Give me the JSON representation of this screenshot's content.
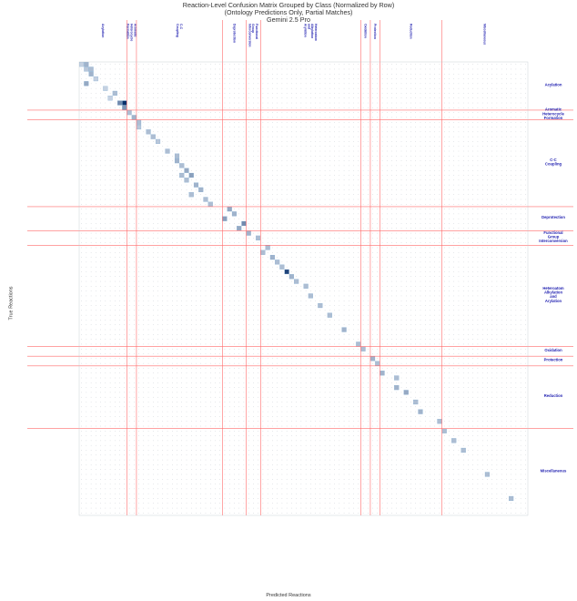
{
  "title_lines": [
    "Reaction-Level Confusion Matrix Grouped by Class (Normalized by Row)",
    "(Ontology Predictions Only, Partial Matches)",
    "Gemini 2.5 Pro"
  ],
  "chart_data": {
    "type": "heatmap",
    "title": "Reaction-Level Confusion Matrix Grouped by Class (Normalized by Row)",
    "subtitle": "(Ontology Predictions Only, Partial Matches)",
    "model": "Gemini 2.5 Pro",
    "xlabel": "Predicted Reactions",
    "ylabel": "True Reactions",
    "normalization": "row",
    "color_scale": [
      "#f4f9fe",
      "#08306b"
    ],
    "grid": true,
    "separator_color": "#ff6b6b",
    "classes": [
      {
        "name": "Acylation",
        "top_lines": [
          "Acylation"
        ],
        "right_lines": [
          "Acylation"
        ],
        "size": 10
      },
      {
        "name": "Aromatic Heterocycle Formation",
        "top_lines": [
          "Aromatic",
          "Heterocycle",
          "Formation"
        ],
        "right_lines": [
          "Aromatic",
          "Heterocycle",
          "Formation"
        ],
        "size": 2
      },
      {
        "name": "C-C Coupling",
        "top_lines": [
          "C-C",
          "Coupling"
        ],
        "right_lines": [
          "C-C",
          "Coupling"
        ],
        "size": 18
      },
      {
        "name": "Deprotection",
        "top_lines": [
          "Deprotection"
        ],
        "right_lines": [
          "Deprotection"
        ],
        "size": 5
      },
      {
        "name": "Functional Group Interconversion",
        "top_lines": [
          "Functional",
          "Group",
          "Interconversion"
        ],
        "right_lines": [
          "Functional",
          "Group",
          "Interconversion"
        ],
        "size": 3
      },
      {
        "name": "Heteroatom Alkylation and Arylation",
        "top_lines": [
          "Heteroatom",
          "Alkylation",
          "and",
          "Arylation"
        ],
        "right_lines": [
          "Heteroatom",
          "Alkylation",
          "and",
          "Arylation"
        ],
        "size": 21
      },
      {
        "name": "Oxidation",
        "top_lines": [
          "Oxidation"
        ],
        "right_lines": [
          "Oxidation"
        ],
        "size": 2
      },
      {
        "name": "Protection",
        "top_lines": [
          "Protection"
        ],
        "right_lines": [
          "Protection"
        ],
        "size": 2
      },
      {
        "name": "Reduction",
        "top_lines": [
          "Reduction"
        ],
        "right_lines": [
          "Reduction"
        ],
        "size": 13
      },
      {
        "name": "Miscellaneous",
        "top_lines": [
          "Miscellaneous"
        ],
        "right_lines": [
          "Miscellaneous"
        ],
        "size": 18
      }
    ],
    "cells": [
      {
        "row": 0,
        "col": 1,
        "value": 0.35
      },
      {
        "row": 0,
        "col": 0,
        "value": 0.2
      },
      {
        "row": 1,
        "col": 2,
        "value": 0.3
      },
      {
        "row": 1,
        "col": 1,
        "value": 0.25
      },
      {
        "row": 2,
        "col": 2,
        "value": 0.35
      },
      {
        "row": 3,
        "col": 3,
        "value": 0.2
      },
      {
        "row": 4,
        "col": 1,
        "value": 0.4
      },
      {
        "row": 5,
        "col": 5,
        "value": 0.2
      },
      {
        "row": 6,
        "col": 7,
        "value": 0.3
      },
      {
        "row": 7,
        "col": 6,
        "value": 0.2
      },
      {
        "row": 8,
        "col": 8,
        "value": 0.55
      },
      {
        "row": 8,
        "col": 9,
        "value": 1.0
      },
      {
        "row": 9,
        "col": 9,
        "value": 0.5
      },
      {
        "row": 10,
        "col": 10,
        "value": 0.3
      },
      {
        "row": 11,
        "col": 11,
        "value": 0.35
      },
      {
        "row": 12,
        "col": 12,
        "value": 0.3
      },
      {
        "row": 13,
        "col": 12,
        "value": 0.25
      },
      {
        "row": 14,
        "col": 14,
        "value": 0.3
      },
      {
        "row": 15,
        "col": 15,
        "value": 0.3
      },
      {
        "row": 16,
        "col": 16,
        "value": 0.25
      },
      {
        "row": 18,
        "col": 18,
        "value": 0.3
      },
      {
        "row": 19,
        "col": 20,
        "value": 0.3
      },
      {
        "row": 20,
        "col": 20,
        "value": 0.35
      },
      {
        "row": 21,
        "col": 21,
        "value": 0.3
      },
      {
        "row": 22,
        "col": 22,
        "value": 0.4
      },
      {
        "row": 23,
        "col": 23,
        "value": 0.45
      },
      {
        "row": 23,
        "col": 21,
        "value": 0.3
      },
      {
        "row": 24,
        "col": 22,
        "value": 0.3
      },
      {
        "row": 25,
        "col": 24,
        "value": 0.35
      },
      {
        "row": 26,
        "col": 25,
        "value": 0.35
      },
      {
        "row": 27,
        "col": 23,
        "value": 0.3
      },
      {
        "row": 28,
        "col": 26,
        "value": 0.3
      },
      {
        "row": 29,
        "col": 27,
        "value": 0.3
      },
      {
        "row": 30,
        "col": 31,
        "value": 0.4
      },
      {
        "row": 31,
        "col": 32,
        "value": 0.35
      },
      {
        "row": 32,
        "col": 30,
        "value": 0.45
      },
      {
        "row": 33,
        "col": 34,
        "value": 0.55
      },
      {
        "row": 34,
        "col": 33,
        "value": 0.4
      },
      {
        "row": 35,
        "col": 35,
        "value": 0.35
      },
      {
        "row": 36,
        "col": 37,
        "value": 0.3
      },
      {
        "row": 38,
        "col": 39,
        "value": 0.3
      },
      {
        "row": 39,
        "col": 38,
        "value": 0.3
      },
      {
        "row": 40,
        "col": 40,
        "value": 0.35
      },
      {
        "row": 41,
        "col": 41,
        "value": 0.3
      },
      {
        "row": 42,
        "col": 42,
        "value": 0.3
      },
      {
        "row": 43,
        "col": 43,
        "value": 0.9
      },
      {
        "row": 44,
        "col": 44,
        "value": 0.35
      },
      {
        "row": 45,
        "col": 45,
        "value": 0.3
      },
      {
        "row": 46,
        "col": 47,
        "value": 0.3
      },
      {
        "row": 48,
        "col": 48,
        "value": 0.3
      },
      {
        "row": 50,
        "col": 50,
        "value": 0.3
      },
      {
        "row": 52,
        "col": 52,
        "value": 0.3
      },
      {
        "row": 55,
        "col": 55,
        "value": 0.35
      },
      {
        "row": 58,
        "col": 58,
        "value": 0.3
      },
      {
        "row": 59,
        "col": 59,
        "value": 0.3
      },
      {
        "row": 61,
        "col": 61,
        "value": 0.35
      },
      {
        "row": 62,
        "col": 62,
        "value": 0.3
      },
      {
        "row": 64,
        "col": 63,
        "value": 0.35
      },
      {
        "row": 65,
        "col": 66,
        "value": 0.3
      },
      {
        "row": 67,
        "col": 66,
        "value": 0.35
      },
      {
        "row": 68,
        "col": 68,
        "value": 0.4
      },
      {
        "row": 70,
        "col": 70,
        "value": 0.3
      },
      {
        "row": 72,
        "col": 71,
        "value": 0.35
      },
      {
        "row": 74,
        "col": 75,
        "value": 0.3
      },
      {
        "row": 76,
        "col": 76,
        "value": 0.3
      },
      {
        "row": 78,
        "col": 78,
        "value": 0.3
      },
      {
        "row": 80,
        "col": 80,
        "value": 0.3
      },
      {
        "row": 85,
        "col": 85,
        "value": 0.3
      },
      {
        "row": 90,
        "col": 90,
        "value": 0.3
      }
    ]
  }
}
